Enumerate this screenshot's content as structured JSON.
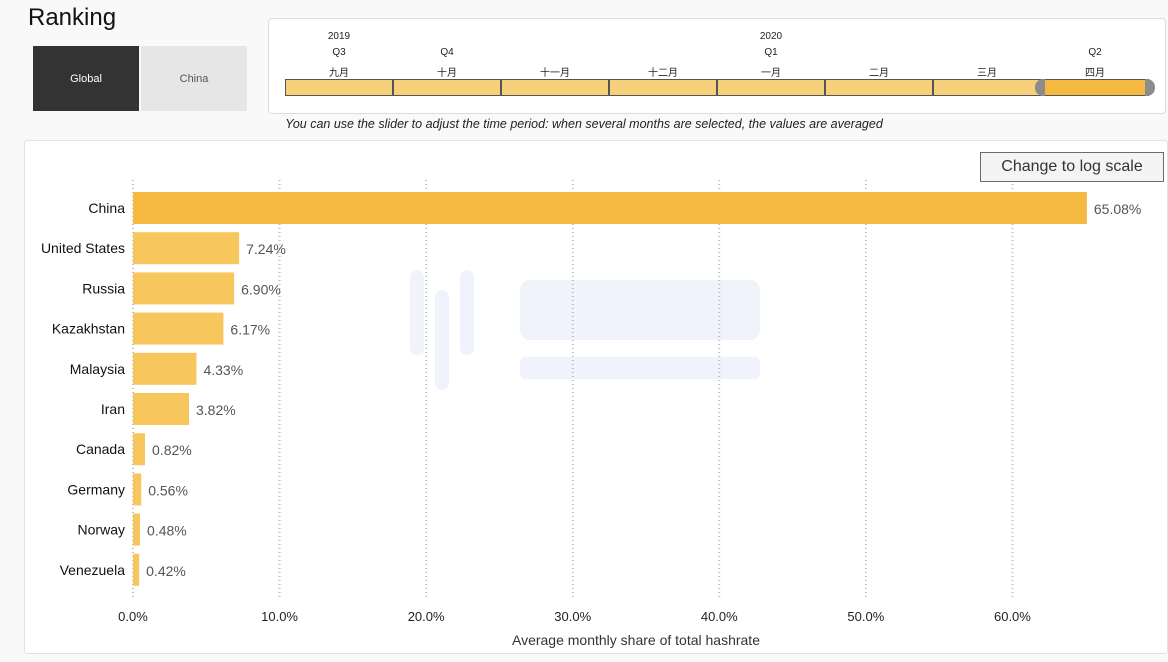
{
  "header": {
    "title": "Ranking"
  },
  "scope": {
    "global_label": "Global",
    "china_label": "China"
  },
  "slider": {
    "years": [
      {
        "label": "2019",
        "col": 0
      },
      {
        "label": "2020",
        "col": 4
      }
    ],
    "quarters": [
      {
        "label": "Q3",
        "col": 0
      },
      {
        "label": "Q4",
        "col": 1
      },
      {
        "label": "Q1",
        "col": 4
      },
      {
        "label": "Q2",
        "col": 7
      }
    ],
    "months": [
      "九月",
      "十月",
      "十一月",
      "十二月",
      "一月",
      "二月",
      "三月",
      "四月"
    ],
    "selected_month_index": 7,
    "note": "You can use the slider to adjust the time period: when several months are selected, the values are averaged"
  },
  "controls": {
    "log_scale_label": "Change to log scale"
  },
  "colors": {
    "top_bar": "#f5b942",
    "bar": "#f7c75e",
    "grid": "#bdbdbd"
  },
  "chart_data": {
    "type": "bar",
    "orientation": "horizontal",
    "categories": [
      "China",
      "United States",
      "Russia",
      "Kazakhstan",
      "Malaysia",
      "Iran",
      "Canada",
      "Germany",
      "Norway",
      "Venezuela"
    ],
    "values": [
      65.08,
      7.24,
      6.9,
      6.17,
      4.33,
      3.82,
      0.82,
      0.56,
      0.48,
      0.42
    ],
    "value_labels": [
      "65.08%",
      "7.24%",
      "6.90%",
      "6.17%",
      "4.33%",
      "3.82%",
      "0.82%",
      "0.56%",
      "0.48%",
      "0.42%"
    ],
    "xlabel": "Average monthly share of total hashrate",
    "xlim": [
      0,
      70
    ],
    "xticks": [
      0,
      10,
      20,
      30,
      40,
      50,
      60
    ],
    "xtick_labels": [
      "0.0%",
      "10.0%",
      "20.0%",
      "30.0%",
      "40.0%",
      "50.0%",
      "60.0%"
    ],
    "grid": true
  }
}
